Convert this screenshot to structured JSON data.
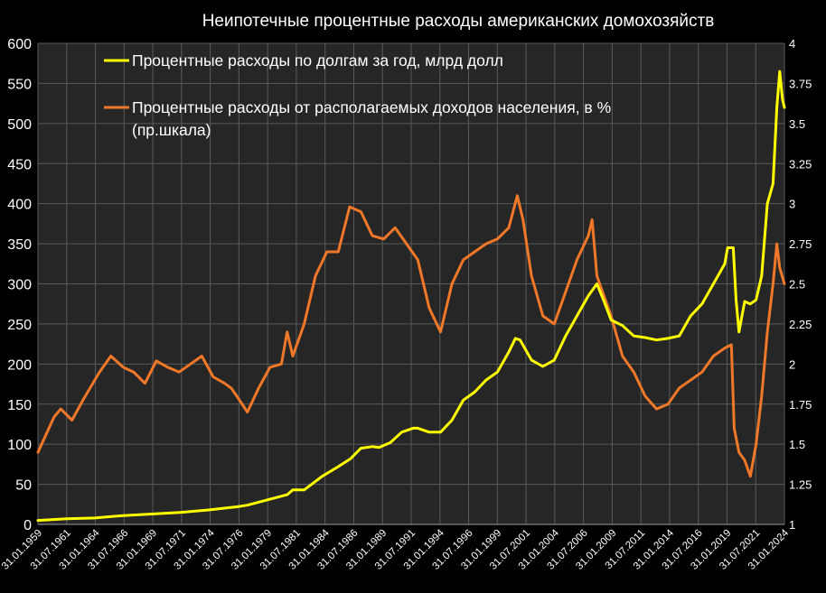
{
  "chart_data": {
    "type": "line",
    "title": "Неипотечные процентные расходы американских домохозяйств",
    "x_start": "1959-01",
    "x_end": "2024-09",
    "xtick_labels": [
      "31.01.1959",
      "31.07.1961",
      "31.01.1964",
      "31.07.1966",
      "31.01.1969",
      "31.07.1971",
      "31.01.1974",
      "31.07.1976",
      "31.01.1979",
      "31.07.1981",
      "31.01.1984",
      "31.07.1986",
      "31.01.1989",
      "31.07.1991",
      "31.01.1994",
      "31.07.1996",
      "31.01.1999",
      "31.07.2001",
      "31.01.2004",
      "31.07.2006",
      "31.01.2009",
      "31.07.2011",
      "31.01.2014",
      "31.07.2016",
      "31.01.2019",
      "31.07.2021",
      "31.01.2024"
    ],
    "y_left": {
      "min": 0,
      "max": 600,
      "step": 50,
      "ticks": [
        "0",
        "50",
        "100",
        "150",
        "200",
        "250",
        "300",
        "350",
        "400",
        "450",
        "500",
        "550",
        "600"
      ]
    },
    "y_right": {
      "min": 1,
      "max": 4,
      "step": 0.25,
      "ticks": [
        "1",
        "1.25",
        "1.5",
        "1.75",
        "2",
        "2.25",
        "2.5",
        "2.75",
        "3",
        "3.25",
        "3.5",
        "3.75",
        "4"
      ]
    },
    "grid": true,
    "legend_position": "top-left",
    "series": [
      {
        "name": "Процентные расходы по долгам за год, млрд долл",
        "color": "#ffff00",
        "axis": "left",
        "points": [
          [
            "1959-01",
            5
          ],
          [
            "1961-07",
            7
          ],
          [
            "1964-01",
            8
          ],
          [
            "1966-07",
            11
          ],
          [
            "1969-01",
            13
          ],
          [
            "1971-07",
            15
          ],
          [
            "1974-01",
            18
          ],
          [
            "1976-07",
            22
          ],
          [
            "1977-06",
            24
          ],
          [
            "1979-01",
            30
          ],
          [
            "1980-12",
            37
          ],
          [
            "1981-06",
            43
          ],
          [
            "1982-06",
            43
          ],
          [
            "1984-01",
            60
          ],
          [
            "1985-06",
            72
          ],
          [
            "1986-07",
            82
          ],
          [
            "1987-06",
            95
          ],
          [
            "1988-06",
            97
          ],
          [
            "1989-01",
            96
          ],
          [
            "1990-01",
            102
          ],
          [
            "1991-01",
            115
          ],
          [
            "1992-01",
            120
          ],
          [
            "1992-06",
            120
          ],
          [
            "1993-06",
            115
          ],
          [
            "1994-06",
            115
          ],
          [
            "1995-06",
            130
          ],
          [
            "1996-06",
            155
          ],
          [
            "1997-06",
            165
          ],
          [
            "1998-06",
            180
          ],
          [
            "1999-06",
            190
          ],
          [
            "2000-06",
            215
          ],
          [
            "2001-01",
            232
          ],
          [
            "2001-06",
            230
          ],
          [
            "2002-06",
            205
          ],
          [
            "2003-06",
            197
          ],
          [
            "2004-06",
            205
          ],
          [
            "2005-06",
            235
          ],
          [
            "2006-06",
            260
          ],
          [
            "2007-06",
            285
          ],
          [
            "2008-03",
            300
          ],
          [
            "2008-10",
            280
          ],
          [
            "2009-06",
            255
          ],
          [
            "2010-06",
            248
          ],
          [
            "2011-06",
            235
          ],
          [
            "2012-06",
            233
          ],
          [
            "2013-06",
            230
          ],
          [
            "2014-06",
            232
          ],
          [
            "2015-06",
            235
          ],
          [
            "2016-06",
            260
          ],
          [
            "2017-06",
            275
          ],
          [
            "2018-06",
            300
          ],
          [
            "2019-06",
            325
          ],
          [
            "2019-09",
            345
          ],
          [
            "2020-03",
            345
          ],
          [
            "2020-06",
            280
          ],
          [
            "2020-09",
            240
          ],
          [
            "2021-03",
            278
          ],
          [
            "2021-09",
            275
          ],
          [
            "2022-03",
            280
          ],
          [
            "2022-09",
            310
          ],
          [
            "2023-03",
            400
          ],
          [
            "2023-09",
            425
          ],
          [
            "2024-01",
            520
          ],
          [
            "2024-04",
            565
          ],
          [
            "2024-07",
            530
          ],
          [
            "2024-09",
            520
          ]
        ]
      },
      {
        "name": "Процентные расходы от располагаемых доходов населения, в % (пр.шкала)",
        "color": "#f07828",
        "axis": "right",
        "points": [
          [
            "1959-01",
            1.45
          ],
          [
            "1960-06",
            1.67
          ],
          [
            "1961-01",
            1.72
          ],
          [
            "1962-01",
            1.65
          ],
          [
            "1963-01",
            1.78
          ],
          [
            "1964-06",
            1.95
          ],
          [
            "1965-06",
            2.05
          ],
          [
            "1966-07",
            1.98
          ],
          [
            "1967-06",
            1.95
          ],
          [
            "1968-06",
            1.88
          ],
          [
            "1969-06",
            2.02
          ],
          [
            "1970-06",
            1.98
          ],
          [
            "1971-06",
            1.95
          ],
          [
            "1972-06",
            2.0
          ],
          [
            "1973-06",
            2.05
          ],
          [
            "1974-06",
            1.92
          ],
          [
            "1975-06",
            1.88
          ],
          [
            "1976-01",
            1.85
          ],
          [
            "1976-07",
            1.8
          ],
          [
            "1977-06",
            1.7
          ],
          [
            "1978-06",
            1.85
          ],
          [
            "1979-06",
            1.98
          ],
          [
            "1980-06",
            2.0
          ],
          [
            "1980-12",
            2.2
          ],
          [
            "1981-06",
            2.05
          ],
          [
            "1982-06",
            2.25
          ],
          [
            "1983-06",
            2.55
          ],
          [
            "1984-06",
            2.7
          ],
          [
            "1985-06",
            2.7
          ],
          [
            "1986-06",
            2.98
          ],
          [
            "1987-06",
            2.95
          ],
          [
            "1988-06",
            2.8
          ],
          [
            "1989-06",
            2.78
          ],
          [
            "1990-06",
            2.85
          ],
          [
            "1991-06",
            2.75
          ],
          [
            "1992-06",
            2.65
          ],
          [
            "1993-06",
            2.35
          ],
          [
            "1994-06",
            2.2
          ],
          [
            "1995-06",
            2.5
          ],
          [
            "1996-06",
            2.65
          ],
          [
            "1997-06",
            2.7
          ],
          [
            "1998-06",
            2.75
          ],
          [
            "1999-06",
            2.78
          ],
          [
            "2000-06",
            2.85
          ],
          [
            "2001-03",
            3.05
          ],
          [
            "2001-09",
            2.9
          ],
          [
            "2002-06",
            2.55
          ],
          [
            "2003-06",
            2.3
          ],
          [
            "2004-06",
            2.25
          ],
          [
            "2005-06",
            2.45
          ],
          [
            "2006-06",
            2.65
          ],
          [
            "2007-06",
            2.8
          ],
          [
            "2007-10",
            2.9
          ],
          [
            "2008-03",
            2.55
          ],
          [
            "2008-09",
            2.45
          ],
          [
            "2009-06",
            2.3
          ],
          [
            "2010-06",
            2.05
          ],
          [
            "2011-06",
            1.95
          ],
          [
            "2012-06",
            1.8
          ],
          [
            "2013-06",
            1.72
          ],
          [
            "2014-06",
            1.75
          ],
          [
            "2015-06",
            1.85
          ],
          [
            "2016-06",
            1.9
          ],
          [
            "2017-06",
            1.95
          ],
          [
            "2018-06",
            2.05
          ],
          [
            "2019-06",
            2.1
          ],
          [
            "2020-01",
            2.12
          ],
          [
            "2020-04",
            1.6
          ],
          [
            "2020-09",
            1.45
          ],
          [
            "2021-03",
            1.4
          ],
          [
            "2021-09",
            1.3
          ],
          [
            "2022-03",
            1.5
          ],
          [
            "2022-09",
            1.8
          ],
          [
            "2023-03",
            2.2
          ],
          [
            "2023-09",
            2.5
          ],
          [
            "2024-01",
            2.75
          ],
          [
            "2024-04",
            2.6
          ],
          [
            "2024-09",
            2.5
          ]
        ]
      }
    ]
  }
}
